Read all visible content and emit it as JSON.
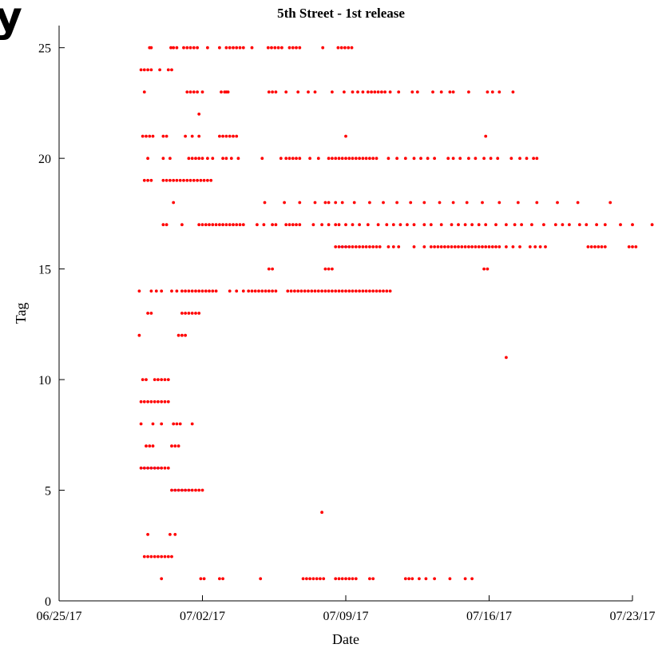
{
  "chart_data": {
    "type": "scatter",
    "title": "5th Street - 1st release",
    "xlabel": "Date",
    "ylabel": "Tag",
    "xlim": [
      "2017-06-25",
      "2017-07-23"
    ],
    "ylim": [
      0,
      26
    ],
    "xticks": [
      {
        "date": "2017-06-25",
        "label": "06/25/17"
      },
      {
        "date": "2017-07-02",
        "label": "07/02/17"
      },
      {
        "date": "2017-07-09",
        "label": "07/09/17"
      },
      {
        "date": "2017-07-16",
        "label": "07/16/17"
      },
      {
        "date": "2017-07-23",
        "label": "07/23/17"
      }
    ],
    "yticks": [
      0,
      5,
      10,
      15,
      20,
      25
    ],
    "grid": false,
    "marker_color": "#ff0000",
    "segment_color": "#8a8aff",
    "series": [
      {
        "tag": 25,
        "dates": [
          "2017-06-29T10:00",
          "2017-06-29T12:00",
          "2017-06-30T11:00",
          "2017-06-30T14:00",
          "2017-06-30T18:00",
          "2017-07-01T02:00",
          "2017-07-01T06:00",
          "2017-07-01T10:00",
          "2017-07-01T14:00",
          "2017-07-01T18:00",
          "2017-07-02T06:00",
          "2017-07-02T20:00",
          "2017-07-03T04:00",
          "2017-07-03T08:00",
          "2017-07-03T12:00",
          "2017-07-03T16:00",
          "2017-07-03T20:00",
          "2017-07-04T00:00",
          "2017-07-04T10:00",
          "2017-07-05T05:00",
          "2017-07-05T09:00",
          "2017-07-05T13:00",
          "2017-07-05T17:00",
          "2017-07-05T21:00",
          "2017-07-06T06:00",
          "2017-07-06T10:00",
          "2017-07-06T14:00",
          "2017-07-06T18:00",
          "2017-07-07T21:00",
          "2017-07-08T15:00",
          "2017-07-08T19:00",
          "2017-07-08T23:00",
          "2017-07-09T03:00",
          "2017-07-09T07:00"
        ]
      },
      {
        "tag": 24,
        "dates": [
          "2017-06-29T00:00",
          "2017-06-29T04:00",
          "2017-06-29T08:00",
          "2017-06-29T12:00",
          "2017-06-29T22:00",
          "2017-06-30T08:00",
          "2017-06-30T12:00"
        ]
      },
      {
        "tag": 23,
        "dates": [
          "2017-06-29T04:00",
          "2017-07-01T06:00",
          "2017-07-01T10:00",
          "2017-07-01T14:00",
          "2017-07-01T18:00",
          "2017-07-02T00:00",
          "2017-07-02T22:00",
          "2017-07-03T02:00",
          "2017-07-03T04:00",
          "2017-07-03T06:00",
          "2017-07-05T06:00",
          "2017-07-05T10:00",
          "2017-07-05T14:00",
          "2017-07-06T02:00",
          "2017-07-06T16:00",
          "2017-07-07T04:00",
          "2017-07-07T12:00",
          "2017-07-08T08:00",
          "2017-07-08T22:00",
          "2017-07-09T08:00",
          "2017-07-09T14:00",
          "2017-07-09T20:00",
          "2017-07-10T02:00",
          "2017-07-10T06:00",
          "2017-07-10T10:00",
          "2017-07-10T14:00",
          "2017-07-10T18:00",
          "2017-07-10T22:00",
          "2017-07-11T04:00",
          "2017-07-11T14:00",
          "2017-07-12T06:00",
          "2017-07-12T12:00",
          "2017-07-13T06:00",
          "2017-07-13T16:00",
          "2017-07-14T02:00",
          "2017-07-14T06:00",
          "2017-07-15T00:00",
          "2017-07-15T22:00",
          "2017-07-16T04:00",
          "2017-07-16T12:00",
          "2017-07-17T04:00"
        ]
      },
      {
        "tag": 22,
        "dates": [
          "2017-07-01T20:00"
        ]
      },
      {
        "tag": 21,
        "dates": [
          "2017-06-29T02:00",
          "2017-06-29T06:00",
          "2017-06-29T10:00",
          "2017-06-29T14:00",
          "2017-06-30T02:00",
          "2017-06-30T06:00",
          "2017-07-01T04:00",
          "2017-07-01T12:00",
          "2017-07-01T20:00",
          "2017-07-02T20:00",
          "2017-07-03T00:00",
          "2017-07-03T04:00",
          "2017-07-03T08:00",
          "2017-07-03T12:00",
          "2017-07-03T16:00",
          "2017-07-09T00:00",
          "2017-07-15T20:00"
        ]
      },
      {
        "tag": 20,
        "dates": [
          "2017-06-29T08:00",
          "2017-06-30T02:00",
          "2017-06-30T10:00",
          "2017-07-01T08:00",
          "2017-07-01T12:00",
          "2017-07-01T16:00",
          "2017-07-01T20:00",
          "2017-07-02T00:00",
          "2017-07-02T06:00",
          "2017-07-02T12:00",
          "2017-07-03T00:00",
          "2017-07-03T04:00",
          "2017-07-03T10:00",
          "2017-07-03T18:00",
          "2017-07-04T22:00",
          "2017-07-05T20:00",
          "2017-07-06T02:00",
          "2017-07-06T06:00",
          "2017-07-06T10:00",
          "2017-07-06T14:00",
          "2017-07-06T18:00",
          "2017-07-07T06:00",
          "2017-07-07T16:00",
          "2017-07-08T04:00",
          "2017-07-08T08:00",
          "2017-07-08T12:00",
          "2017-07-08T16:00",
          "2017-07-08T20:00",
          "2017-07-09T00:00",
          "2017-07-09T04:00",
          "2017-07-09T08:00",
          "2017-07-09T12:00",
          "2017-07-09T16:00",
          "2017-07-09T20:00",
          "2017-07-10T00:00",
          "2017-07-10T04:00",
          "2017-07-10T08:00",
          "2017-07-10T12:00",
          "2017-07-11T02:00",
          "2017-07-11T12:00",
          "2017-07-11T22:00",
          "2017-07-12T08:00",
          "2017-07-12T16:00",
          "2017-07-13T00:00",
          "2017-07-13T08:00",
          "2017-07-14T00:00",
          "2017-07-14T06:00",
          "2017-07-14T14:00",
          "2017-07-15T00:00",
          "2017-07-15T08:00",
          "2017-07-15T18:00",
          "2017-07-16T02:00",
          "2017-07-16T10:00",
          "2017-07-17T02:00",
          "2017-07-17T12:00",
          "2017-07-17T20:00",
          "2017-07-18T04:00",
          "2017-07-18T08:00"
        ]
      },
      {
        "tag": 19,
        "dates": [
          "2017-06-29T04:00",
          "2017-06-29T08:00",
          "2017-06-29T12:00",
          "2017-06-30T02:00",
          "2017-06-30T06:00",
          "2017-06-30T10:00",
          "2017-06-30T14:00",
          "2017-06-30T18:00",
          "2017-06-30T22:00",
          "2017-07-01T02:00",
          "2017-07-01T06:00",
          "2017-07-01T10:00",
          "2017-07-01T14:00",
          "2017-07-01T18:00",
          "2017-07-01T22:00",
          "2017-07-02T02:00",
          "2017-07-02T06:00",
          "2017-07-02T10:00"
        ]
      },
      {
        "tag": 18,
        "dates": [
          "2017-06-30T14:00",
          "2017-07-05T01:00",
          "2017-07-06T00:00",
          "2017-07-06T18:00",
          "2017-07-07T12:00",
          "2017-07-08T00:00",
          "2017-07-08T04:00",
          "2017-07-08T12:00",
          "2017-07-08T20:00",
          "2017-07-09T10:00",
          "2017-07-10T04:00",
          "2017-07-10T20:00",
          "2017-07-11T12:00",
          "2017-07-12T04:00",
          "2017-07-12T20:00",
          "2017-07-13T14:00",
          "2017-07-14T06:00",
          "2017-07-14T22:00",
          "2017-07-15T16:00",
          "2017-07-16T12:00",
          "2017-07-17T10:00",
          "2017-07-18T08:00",
          "2017-07-19T08:00",
          "2017-07-20T08:00",
          "2017-07-21T22:00"
        ]
      },
      {
        "tag": 17,
        "dates": [
          "2017-06-30T02:00",
          "2017-06-30T06:00",
          "2017-07-01T00:00",
          "2017-07-01T20:00",
          "2017-07-02T00:00",
          "2017-07-02T04:00",
          "2017-07-02T08:00",
          "2017-07-02T12:00",
          "2017-07-02T16:00",
          "2017-07-02T20:00",
          "2017-07-03T00:00",
          "2017-07-03T04:00",
          "2017-07-03T08:00",
          "2017-07-03T12:00",
          "2017-07-03T16:00",
          "2017-07-03T20:00",
          "2017-07-04T00:00",
          "2017-07-04T16:00",
          "2017-07-05T00:00",
          "2017-07-05T10:00",
          "2017-07-05T14:00",
          "2017-07-06T02:00",
          "2017-07-06T06:00",
          "2017-07-06T10:00",
          "2017-07-06T14:00",
          "2017-07-06T18:00",
          "2017-07-07T10:00",
          "2017-07-07T20:00",
          "2017-07-08T04:00",
          "2017-07-08T12:00",
          "2017-07-08T16:00",
          "2017-07-09T00:00",
          "2017-07-09T08:00",
          "2017-07-09T16:00",
          "2017-07-10T02:00",
          "2017-07-10T14:00",
          "2017-07-11T00:00",
          "2017-07-11T08:00",
          "2017-07-11T16:00",
          "2017-07-12T00:00",
          "2017-07-12T08:00",
          "2017-07-12T20:00",
          "2017-07-13T04:00",
          "2017-07-13T16:00",
          "2017-07-14T04:00",
          "2017-07-14T12:00",
          "2017-07-14T20:00",
          "2017-07-15T04:00",
          "2017-07-15T12:00",
          "2017-07-15T20:00",
          "2017-07-16T08:00",
          "2017-07-16T20:00",
          "2017-07-17T06:00",
          "2017-07-17T14:00",
          "2017-07-18T02:00",
          "2017-07-18T16:00",
          "2017-07-19T06:00",
          "2017-07-19T14:00",
          "2017-07-19T22:00",
          "2017-07-20T10:00",
          "2017-07-20T18:00",
          "2017-07-21T06:00",
          "2017-07-21T16:00",
          "2017-07-22T10:00",
          "2017-07-23T00:00",
          "2017-07-23T23:00"
        ]
      },
      {
        "tag": 16,
        "dates": [
          "2017-07-08T12:00",
          "2017-07-08T16:00",
          "2017-07-08T20:00",
          "2017-07-09T00:00",
          "2017-07-09T04:00",
          "2017-07-09T08:00",
          "2017-07-09T12:00",
          "2017-07-09T16:00",
          "2017-07-09T20:00",
          "2017-07-10T00:00",
          "2017-07-10T04:00",
          "2017-07-10T08:00",
          "2017-07-10T12:00",
          "2017-07-10T16:00",
          "2017-07-11T02:00",
          "2017-07-11T08:00",
          "2017-07-11T14:00",
          "2017-07-12T08:00",
          "2017-07-12T20:00",
          "2017-07-13T04:00",
          "2017-07-13T08:00",
          "2017-07-13T12:00",
          "2017-07-13T16:00",
          "2017-07-13T20:00",
          "2017-07-14T00:00",
          "2017-07-14T04:00",
          "2017-07-14T08:00",
          "2017-07-14T12:00",
          "2017-07-14T16:00",
          "2017-07-14T20:00",
          "2017-07-15T00:00",
          "2017-07-15T04:00",
          "2017-07-15T08:00",
          "2017-07-15T12:00",
          "2017-07-15T16:00",
          "2017-07-15T20:00",
          "2017-07-16T00:00",
          "2017-07-16T04:00",
          "2017-07-16T08:00",
          "2017-07-16T12:00",
          "2017-07-16T20:00",
          "2017-07-17T04:00",
          "2017-07-17T12:00",
          "2017-07-18T00:00",
          "2017-07-18T06:00",
          "2017-07-18T12:00",
          "2017-07-18T18:00",
          "2017-07-20T20:00",
          "2017-07-21T00:00",
          "2017-07-21T04:00",
          "2017-07-21T08:00",
          "2017-07-21T12:00",
          "2017-07-21T16:00",
          "2017-07-22T20:00",
          "2017-07-23T00:00",
          "2017-07-23T04:00"
        ]
      },
      {
        "tag": 15,
        "dates": [
          "2017-07-05T06:00",
          "2017-07-05T10:00",
          "2017-07-08T00:00",
          "2017-07-08T04:00",
          "2017-07-08T08:00",
          "2017-07-15T18:00",
          "2017-07-15T22:00"
        ]
      },
      {
        "tag": 14,
        "dates": [
          "2017-06-28T22:00",
          "2017-06-29T12:00",
          "2017-06-29T18:00",
          "2017-06-30T00:00",
          "2017-06-30T12:00",
          "2017-06-30T18:00",
          "2017-07-01T00:00",
          "2017-07-01T04:00",
          "2017-07-01T08:00",
          "2017-07-01T12:00",
          "2017-07-01T16:00",
          "2017-07-01T20:00",
          "2017-07-02T00:00",
          "2017-07-02T04:00",
          "2017-07-02T08:00",
          "2017-07-02T12:00",
          "2017-07-02T16:00",
          "2017-07-03T08:00",
          "2017-07-03T16:00",
          "2017-07-04T00:00",
          "2017-07-04T06:00",
          "2017-07-04T10:00",
          "2017-07-04T14:00",
          "2017-07-04T18:00",
          "2017-07-04T22:00",
          "2017-07-05T02:00",
          "2017-07-05T06:00",
          "2017-07-05T10:00",
          "2017-07-05T14:00",
          "2017-07-06T04:00",
          "2017-07-06T08:00",
          "2017-07-06T12:00",
          "2017-07-06T16:00",
          "2017-07-06T20:00",
          "2017-07-07T00:00",
          "2017-07-07T04:00",
          "2017-07-07T08:00",
          "2017-07-07T12:00",
          "2017-07-07T16:00",
          "2017-07-07T20:00",
          "2017-07-08T00:00",
          "2017-07-08T04:00",
          "2017-07-08T08:00",
          "2017-07-08T12:00",
          "2017-07-08T16:00",
          "2017-07-08T20:00",
          "2017-07-09T00:00",
          "2017-07-09T04:00",
          "2017-07-09T08:00",
          "2017-07-09T12:00",
          "2017-07-09T16:00",
          "2017-07-09T20:00",
          "2017-07-10T00:00",
          "2017-07-10T04:00",
          "2017-07-10T08:00",
          "2017-07-10T12:00",
          "2017-07-10T16:00",
          "2017-07-10T20:00",
          "2017-07-11T00:00",
          "2017-07-11T04:00"
        ]
      },
      {
        "tag": 13,
        "dates": [
          "2017-06-29T08:00",
          "2017-06-29T12:00",
          "2017-07-01T00:00",
          "2017-07-01T04:00",
          "2017-07-01T08:00",
          "2017-07-01T12:00",
          "2017-07-01T16:00",
          "2017-07-01T20:00"
        ]
      },
      {
        "tag": 12,
        "dates": [
          "2017-06-28T22:00",
          "2017-07-00T16:00",
          "2017-06-30T20:00",
          "2017-07-01T00:00",
          "2017-07-01T04:00"
        ]
      },
      {
        "tag": 11,
        "dates": [
          "2017-07-16T20:00"
        ]
      },
      {
        "tag": 10,
        "dates": [
          "2017-06-29T02:00",
          "2017-06-29T06:00",
          "2017-06-29T16:00",
          "2017-06-29T20:00",
          "2017-06-30T00:00",
          "2017-06-30T04:00",
          "2017-06-30T08:00"
        ]
      },
      {
        "tag": 9,
        "dates": [
          "2017-06-29T00:00",
          "2017-06-29T04:00",
          "2017-06-29T08:00",
          "2017-06-29T12:00",
          "2017-06-29T16:00",
          "2017-06-29T20:00",
          "2017-06-30T00:00",
          "2017-06-30T04:00",
          "2017-06-30T08:00"
        ]
      },
      {
        "tag": 8,
        "dates": [
          "2017-06-29T00:00",
          "2017-06-29T14:00",
          "2017-06-30T00:00",
          "2017-06-30T14:00",
          "2017-06-30T18:00",
          "2017-06-30T22:00",
          "2017-07-01T12:00"
        ]
      },
      {
        "tag": 7,
        "dates": [
          "2017-06-29T06:00",
          "2017-06-29T10:00",
          "2017-06-29T14:00",
          "2017-06-30T12:00",
          "2017-06-30T16:00",
          "2017-06-30T20:00"
        ]
      },
      {
        "tag": 6,
        "dates": [
          "2017-06-29T00:00",
          "2017-06-29T04:00",
          "2017-06-29T08:00",
          "2017-06-29T12:00",
          "2017-06-29T16:00",
          "2017-06-29T20:00",
          "2017-06-30T00:00",
          "2017-06-30T04:00",
          "2017-06-30T08:00"
        ]
      },
      {
        "tag": 5,
        "dates": [
          "2017-06-30T12:00",
          "2017-06-30T16:00",
          "2017-06-30T20:00",
          "2017-07-01T00:00",
          "2017-07-01T04:00",
          "2017-07-01T08:00",
          "2017-07-01T12:00",
          "2017-07-01T16:00",
          "2017-07-01T20:00",
          "2017-07-02T00:00"
        ]
      },
      {
        "tag": 4,
        "dates": [
          "2017-07-07T20:00"
        ]
      },
      {
        "tag": 3,
        "dates": [
          "2017-06-29T08:00",
          "2017-06-30T10:00",
          "2017-06-30T16:00"
        ]
      },
      {
        "tag": 2,
        "dates": [
          "2017-06-29T04:00",
          "2017-06-29T08:00",
          "2017-06-29T12:00",
          "2017-06-29T16:00",
          "2017-06-29T20:00",
          "2017-06-30T00:00",
          "2017-06-30T04:00",
          "2017-06-30T08:00",
          "2017-06-30T12:00"
        ]
      },
      {
        "tag": 1,
        "dates": [
          "2017-06-30T00:00",
          "2017-07-01T22:00",
          "2017-07-02T02:00",
          "2017-07-02T20:00",
          "2017-07-03T00:00",
          "2017-07-04T20:00",
          "2017-07-06T22:00",
          "2017-07-07T02:00",
          "2017-07-07T06:00",
          "2017-07-07T10:00",
          "2017-07-07T14:00",
          "2017-07-07T18:00",
          "2017-07-07T22:00",
          "2017-07-08T12:00",
          "2017-07-08T16:00",
          "2017-07-08T20:00",
          "2017-07-09T00:00",
          "2017-07-09T04:00",
          "2017-07-09T08:00",
          "2017-07-09T12:00",
          "2017-07-10T04:00",
          "2017-07-10T08:00",
          "2017-07-11T22:00",
          "2017-07-12T02:00",
          "2017-07-12T06:00",
          "2017-07-12T14:00",
          "2017-07-12T22:00",
          "2017-07-13T08:00",
          "2017-07-14T02:00",
          "2017-07-14T20:00",
          "2017-07-15T04:00"
        ]
      }
    ],
    "segments": [
      {
        "tag": 6,
        "from": "2017-06-29T00:00",
        "to": "2017-06-30T00:00"
      },
      {
        "tag": 5,
        "from": "2017-06-30T12:00",
        "to": "2017-07-01T12:00"
      },
      {
        "tag": 16,
        "from": "2017-07-08T16:00",
        "to": "2017-07-09T04:00"
      }
    ]
  }
}
